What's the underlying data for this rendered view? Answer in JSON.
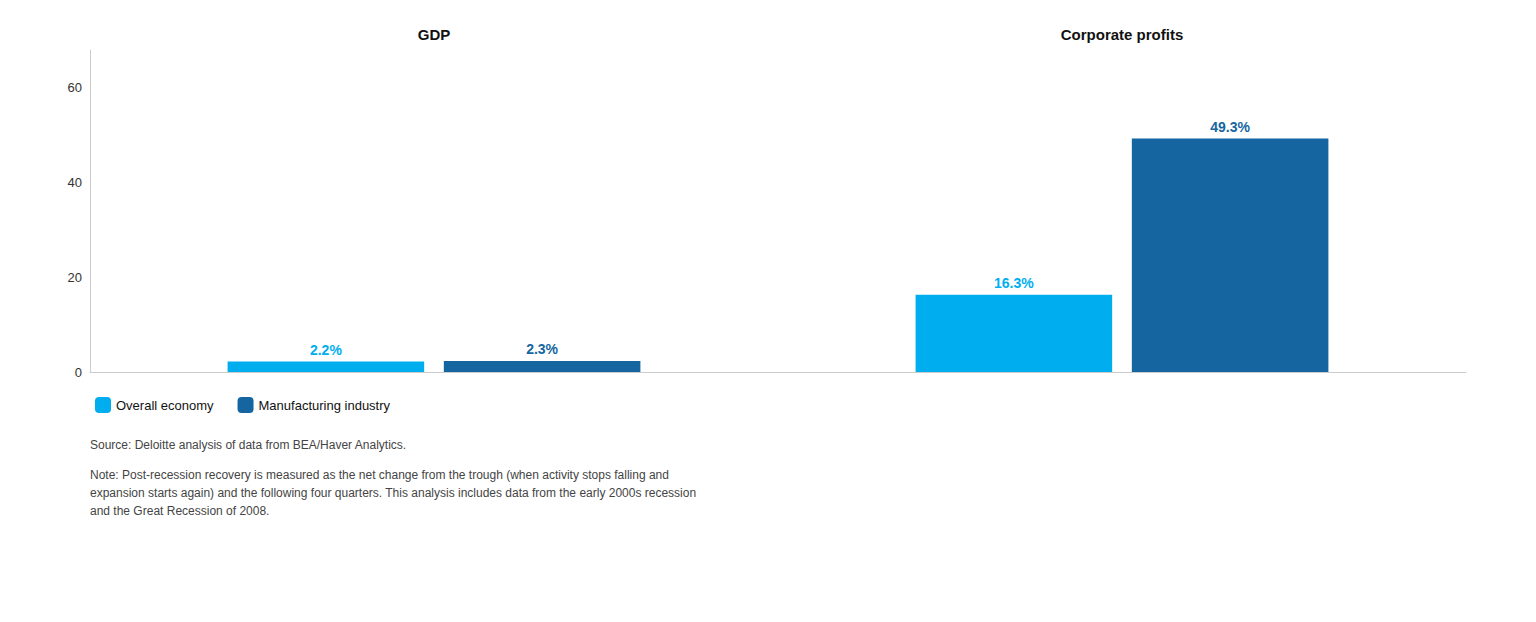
{
  "chart_data": {
    "type": "bar",
    "categories": [
      "GDP",
      "Corporate profits"
    ],
    "series": [
      {
        "name": "Overall economy",
        "color": "#00AEEF",
        "values": [
          2.2,
          16.3
        ],
        "value_labels": [
          "2.2%",
          "16.3%"
        ]
      },
      {
        "name": "Manufacturing industry",
        "color": "#1565A0",
        "values": [
          2.3,
          49.3
        ],
        "value_labels": [
          "2.3%",
          "49.3%"
        ]
      }
    ],
    "ylim": [
      0,
      68
    ],
    "yticks": [
      0,
      20,
      40,
      60
    ],
    "grid": false,
    "legend": "bottom left",
    "data_labels": true,
    "annotations": [
      "Source: Deloitte analysis of data from BEA/Haver Analytics.",
      "Note: Post-recession recovery is measured as the net change from the trough (when activity stops falling and\nexpansion starts again) and the following four quarters. This analysis includes data from the early 2000s recession\nand the Great Recession of 2008."
    ]
  }
}
